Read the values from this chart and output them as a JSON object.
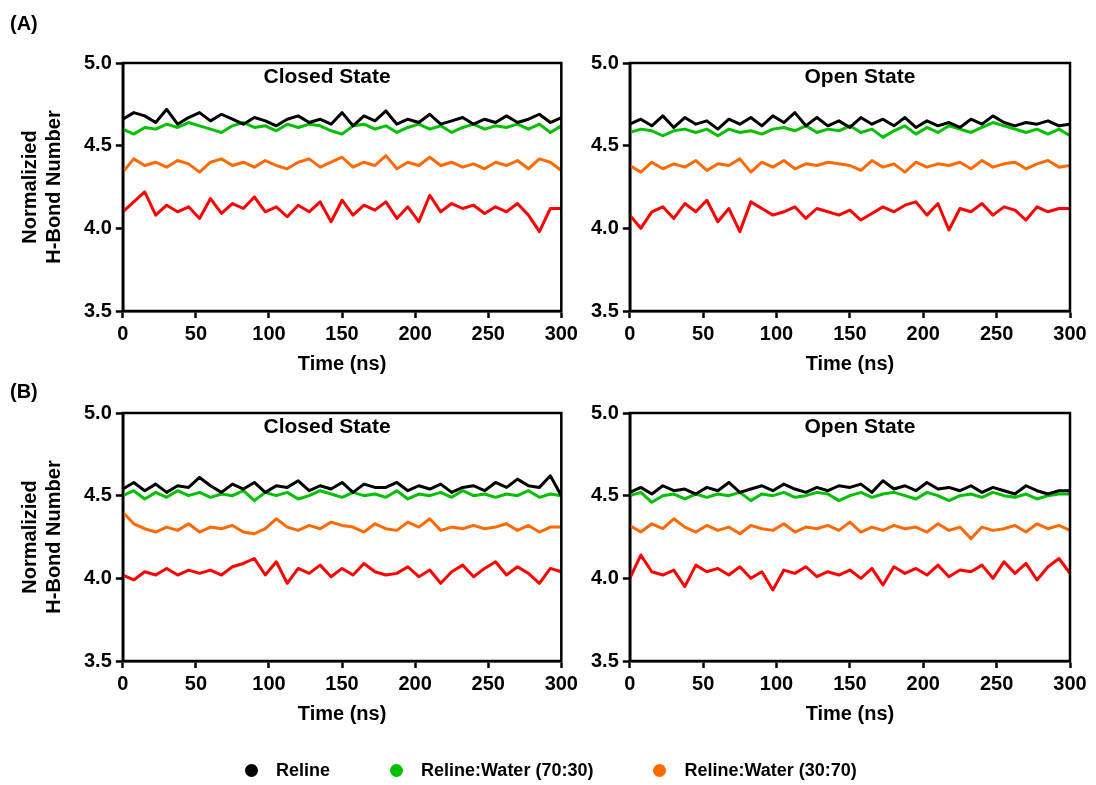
{
  "chart_data": [
    {
      "type": "line",
      "title": "Closed State",
      "annotations": [
        "(A)"
      ],
      "xlabel": "Time (ns)",
      "ylabel": "Normalizied\nH-Bond Number",
      "xlim": [
        0,
        300
      ],
      "xticks": [
        0,
        50,
        100,
        150,
        200,
        250,
        300
      ],
      "ylim": [
        3.5,
        5.0
      ],
      "yticks": [
        {
          "value": 3.5,
          "label": "3.5"
        },
        {
          "value": 4.0,
          "label": "4.0"
        },
        {
          "value": 4.5,
          "label": "4.5"
        },
        {
          "value": 5.0,
          "label": "5.0"
        }
      ],
      "grid": false,
      "marker": "none",
      "line_style": "solid",
      "x": [
        0,
        7.5,
        15,
        22.5,
        30,
        37.5,
        45,
        52.5,
        60,
        67.5,
        75,
        82.5,
        90,
        97.5,
        105,
        112.5,
        120,
        127.5,
        135,
        142.5,
        150,
        157.5,
        165,
        172.5,
        180,
        187.5,
        195,
        202.5,
        210,
        217.5,
        225,
        232.5,
        240,
        247.5,
        255,
        262.5,
        270,
        277.5,
        285,
        292.5,
        300
      ],
      "series": [
        {
          "color": "#000000",
          "values": [
            4.66,
            4.7,
            4.68,
            4.64,
            4.72,
            4.63,
            4.67,
            4.7,
            4.65,
            4.69,
            4.66,
            4.63,
            4.67,
            4.65,
            4.62,
            4.66,
            4.68,
            4.64,
            4.66,
            4.63,
            4.7,
            4.62,
            4.68,
            4.65,
            4.71,
            4.63,
            4.66,
            4.64,
            4.69,
            4.63,
            4.65,
            4.67,
            4.63,
            4.66,
            4.64,
            4.68,
            4.64,
            4.66,
            4.69,
            4.64,
            4.67
          ]
        },
        {
          "color": "#00c000",
          "values": [
            4.6,
            4.57,
            4.61,
            4.6,
            4.63,
            4.61,
            4.64,
            4.62,
            4.6,
            4.58,
            4.62,
            4.64,
            4.61,
            4.62,
            4.59,
            4.63,
            4.61,
            4.63,
            4.62,
            4.59,
            4.57,
            4.62,
            4.63,
            4.6,
            4.62,
            4.58,
            4.61,
            4.63,
            4.6,
            4.62,
            4.58,
            4.61,
            4.63,
            4.6,
            4.62,
            4.61,
            4.63,
            4.6,
            4.63,
            4.58,
            4.62
          ]
        },
        {
          "color": "#ff6a00",
          "values": [
            4.34,
            4.42,
            4.38,
            4.4,
            4.37,
            4.41,
            4.39,
            4.34,
            4.4,
            4.42,
            4.38,
            4.4,
            4.37,
            4.41,
            4.38,
            4.36,
            4.4,
            4.42,
            4.37,
            4.4,
            4.43,
            4.37,
            4.4,
            4.38,
            4.44,
            4.36,
            4.4,
            4.38,
            4.43,
            4.38,
            4.4,
            4.37,
            4.39,
            4.36,
            4.4,
            4.38,
            4.41,
            4.36,
            4.42,
            4.4,
            4.35
          ]
        },
        {
          "color": "#ff0000",
          "values": [
            4.1,
            4.16,
            4.22,
            4.08,
            4.14,
            4.1,
            4.13,
            4.06,
            4.18,
            4.09,
            4.15,
            4.12,
            4.19,
            4.1,
            4.13,
            4.07,
            4.14,
            4.1,
            4.16,
            4.04,
            4.17,
            4.08,
            4.14,
            4.11,
            4.16,
            4.06,
            4.13,
            4.04,
            4.2,
            4.1,
            4.15,
            4.12,
            4.14,
            4.09,
            4.13,
            4.1,
            4.15,
            4.08,
            3.98,
            4.12,
            4.12
          ]
        }
      ]
    },
    {
      "type": "line",
      "title": "Open State",
      "xlabel": "Time (ns)",
      "xlim": [
        0,
        300
      ],
      "xticks": [
        0,
        50,
        100,
        150,
        200,
        250,
        300
      ],
      "ylim": [
        3.5,
        5.0
      ],
      "yticks": [
        {
          "value": 3.5,
          "label": "3.5"
        },
        {
          "value": 4.0,
          "label": "4.0"
        },
        {
          "value": 4.5,
          "label": "4.5"
        },
        {
          "value": 5.0,
          "label": "5.0"
        }
      ],
      "grid": false,
      "marker": "none",
      "line_style": "solid",
      "x": [
        0,
        7.5,
        15,
        22.5,
        30,
        37.5,
        45,
        52.5,
        60,
        67.5,
        75,
        82.5,
        90,
        97.5,
        105,
        112.5,
        120,
        127.5,
        135,
        142.5,
        150,
        157.5,
        165,
        172.5,
        180,
        187.5,
        195,
        202.5,
        210,
        217.5,
        225,
        232.5,
        240,
        247.5,
        255,
        262.5,
        270,
        277.5,
        285,
        292.5,
        300
      ],
      "series": [
        {
          "color": "#000000",
          "values": [
            4.63,
            4.66,
            4.62,
            4.68,
            4.61,
            4.67,
            4.63,
            4.65,
            4.6,
            4.66,
            4.63,
            4.67,
            4.62,
            4.68,
            4.64,
            4.7,
            4.62,
            4.67,
            4.62,
            4.65,
            4.61,
            4.67,
            4.63,
            4.66,
            4.62,
            4.67,
            4.61,
            4.65,
            4.62,
            4.64,
            4.61,
            4.66,
            4.63,
            4.68,
            4.64,
            4.62,
            4.64,
            4.63,
            4.65,
            4.62,
            4.63
          ]
        },
        {
          "color": "#00c000",
          "values": [
            4.58,
            4.6,
            4.59,
            4.56,
            4.59,
            4.6,
            4.58,
            4.6,
            4.56,
            4.6,
            4.58,
            4.59,
            4.57,
            4.6,
            4.61,
            4.59,
            4.62,
            4.58,
            4.6,
            4.59,
            4.62,
            4.58,
            4.6,
            4.55,
            4.59,
            4.62,
            4.57,
            4.61,
            4.58,
            4.62,
            4.6,
            4.58,
            4.61,
            4.64,
            4.62,
            4.6,
            4.58,
            4.6,
            4.57,
            4.6,
            4.56
          ]
        },
        {
          "color": "#ff6a00",
          "values": [
            4.38,
            4.34,
            4.4,
            4.36,
            4.39,
            4.37,
            4.41,
            4.35,
            4.39,
            4.38,
            4.42,
            4.34,
            4.4,
            4.37,
            4.41,
            4.36,
            4.39,
            4.38,
            4.4,
            4.39,
            4.38,
            4.35,
            4.41,
            4.37,
            4.39,
            4.34,
            4.4,
            4.37,
            4.39,
            4.38,
            4.4,
            4.36,
            4.41,
            4.37,
            4.39,
            4.4,
            4.36,
            4.39,
            4.41,
            4.37,
            4.38
          ]
        },
        {
          "color": "#ff0000",
          "values": [
            4.08,
            4.0,
            4.1,
            4.13,
            4.06,
            4.15,
            4.1,
            4.17,
            4.04,
            4.12,
            3.98,
            4.16,
            4.12,
            4.08,
            4.1,
            4.13,
            4.06,
            4.12,
            4.1,
            4.08,
            4.11,
            4.05,
            4.09,
            4.13,
            4.1,
            4.14,
            4.16,
            4.08,
            4.15,
            3.99,
            4.12,
            4.1,
            4.15,
            4.08,
            4.13,
            4.11,
            4.05,
            4.13,
            4.1,
            4.12,
            4.12
          ]
        }
      ]
    },
    {
      "type": "line",
      "title": "Closed State",
      "annotations": [
        "(B)"
      ],
      "xlabel": "Time (ns)",
      "ylabel": "Normalizied\nH-Bond Number",
      "xlim": [
        0,
        300
      ],
      "xticks": [
        0,
        50,
        100,
        150,
        200,
        250,
        300
      ],
      "ylim": [
        3.5,
        5.0
      ],
      "yticks": [
        {
          "value": 3.5,
          "label": "3.5"
        },
        {
          "value": 4.0,
          "label": "4.0"
        },
        {
          "value": 4.5,
          "label": "4.5"
        },
        {
          "value": 5.0,
          "label": "5.0"
        }
      ],
      "grid": false,
      "marker": "none",
      "line_style": "solid",
      "x": [
        0,
        7.5,
        15,
        22.5,
        30,
        37.5,
        45,
        52.5,
        60,
        67.5,
        75,
        82.5,
        90,
        97.5,
        105,
        112.5,
        120,
        127.5,
        135,
        142.5,
        150,
        157.5,
        165,
        172.5,
        180,
        187.5,
        195,
        202.5,
        210,
        217.5,
        225,
        232.5,
        240,
        247.5,
        255,
        262.5,
        270,
        277.5,
        285,
        292.5,
        300
      ],
      "series": [
        {
          "color": "#000000",
          "values": [
            4.54,
            4.58,
            4.53,
            4.57,
            4.52,
            4.56,
            4.55,
            4.61,
            4.56,
            4.52,
            4.57,
            4.54,
            4.58,
            4.52,
            4.56,
            4.55,
            4.59,
            4.53,
            4.56,
            4.54,
            4.58,
            4.52,
            4.57,
            4.55,
            4.55,
            4.58,
            4.53,
            4.56,
            4.54,
            4.57,
            4.52,
            4.55,
            4.56,
            4.53,
            4.58,
            4.55,
            4.6,
            4.56,
            4.55,
            4.62,
            4.5
          ]
        },
        {
          "color": "#00c000",
          "values": [
            4.5,
            4.53,
            4.48,
            4.52,
            4.49,
            4.53,
            4.5,
            4.52,
            4.49,
            4.51,
            4.5,
            4.53,
            4.47,
            4.52,
            4.5,
            4.52,
            4.48,
            4.5,
            4.53,
            4.51,
            4.49,
            4.52,
            4.5,
            4.51,
            4.49,
            4.53,
            4.48,
            4.51,
            4.5,
            4.52,
            4.49,
            4.53,
            4.5,
            4.51,
            4.49,
            4.51,
            4.5,
            4.53,
            4.49,
            4.51,
            4.5
          ]
        },
        {
          "color": "#ff6a00",
          "values": [
            4.4,
            4.33,
            4.3,
            4.28,
            4.31,
            4.29,
            4.33,
            4.28,
            4.31,
            4.3,
            4.32,
            4.28,
            4.27,
            4.3,
            4.36,
            4.31,
            4.29,
            4.32,
            4.3,
            4.34,
            4.32,
            4.31,
            4.28,
            4.33,
            4.3,
            4.29,
            4.34,
            4.31,
            4.36,
            4.29,
            4.31,
            4.3,
            4.32,
            4.3,
            4.31,
            4.33,
            4.29,
            4.32,
            4.28,
            4.31,
            4.31
          ]
        },
        {
          "color": "#ff0000",
          "values": [
            4.02,
            3.99,
            4.04,
            4.02,
            4.06,
            4.02,
            4.05,
            4.03,
            4.05,
            4.02,
            4.07,
            4.09,
            4.12,
            4.02,
            4.1,
            3.97,
            4.06,
            4.03,
            4.08,
            4.01,
            4.06,
            4.02,
            4.09,
            4.04,
            4.02,
            4.03,
            4.07,
            4.01,
            4.05,
            3.97,
            4.04,
            4.08,
            4.01,
            4.06,
            4.1,
            4.02,
            4.07,
            4.03,
            3.97,
            4.06,
            4.04
          ]
        }
      ]
    },
    {
      "type": "line",
      "title": "Open State",
      "xlabel": "Time (ns)",
      "xlim": [
        0,
        300
      ],
      "xticks": [
        0,
        50,
        100,
        150,
        200,
        250,
        300
      ],
      "ylim": [
        3.5,
        5.0
      ],
      "yticks": [
        {
          "value": 3.5,
          "label": "3.5"
        },
        {
          "value": 4.0,
          "label": "4.0"
        },
        {
          "value": 4.5,
          "label": "4.5"
        },
        {
          "value": 5.0,
          "label": "5.0"
        }
      ],
      "grid": false,
      "marker": "none",
      "line_style": "solid",
      "legend": "bottom",
      "x": [
        0,
        7.5,
        15,
        22.5,
        30,
        37.5,
        45,
        52.5,
        60,
        67.5,
        75,
        82.5,
        90,
        97.5,
        105,
        112.5,
        120,
        127.5,
        135,
        142.5,
        150,
        157.5,
        165,
        172.5,
        180,
        187.5,
        195,
        202.5,
        210,
        217.5,
        225,
        232.5,
        240,
        247.5,
        255,
        262.5,
        270,
        277.5,
        285,
        292.5,
        300
      ],
      "series": [
        {
          "name": "Reline",
          "color": "#000000",
          "values": [
            4.52,
            4.55,
            4.51,
            4.56,
            4.53,
            4.54,
            4.51,
            4.55,
            4.53,
            4.58,
            4.52,
            4.54,
            4.56,
            4.53,
            4.57,
            4.54,
            4.52,
            4.55,
            4.53,
            4.56,
            4.55,
            4.57,
            4.52,
            4.59,
            4.54,
            4.56,
            4.53,
            4.58,
            4.54,
            4.55,
            4.53,
            4.56,
            4.52,
            4.55,
            4.53,
            4.51,
            4.56,
            4.53,
            4.51,
            4.53,
            4.53
          ]
        },
        {
          "name": "Reline:Water (70:30)",
          "color": "#00c000",
          "values": [
            4.5,
            4.52,
            4.46,
            4.5,
            4.51,
            4.48,
            4.51,
            4.49,
            4.51,
            4.5,
            4.52,
            4.47,
            4.51,
            4.5,
            4.52,
            4.49,
            4.5,
            4.52,
            4.51,
            4.47,
            4.5,
            4.52,
            4.49,
            4.51,
            4.52,
            4.5,
            4.48,
            4.52,
            4.5,
            4.47,
            4.5,
            4.51,
            4.49,
            4.52,
            4.5,
            4.49,
            4.51,
            4.48,
            4.5,
            4.51,
            4.51
          ]
        },
        {
          "name": "Reline:Water (30:70)",
          "color": "#ff6a00",
          "values": [
            4.32,
            4.28,
            4.33,
            4.3,
            4.36,
            4.31,
            4.28,
            4.32,
            4.29,
            4.31,
            4.27,
            4.32,
            4.3,
            4.29,
            4.33,
            4.28,
            4.31,
            4.3,
            4.32,
            4.29,
            4.34,
            4.28,
            4.31,
            4.29,
            4.32,
            4.3,
            4.31,
            4.28,
            4.33,
            4.29,
            4.31,
            4.24,
            4.31,
            4.29,
            4.3,
            4.32,
            4.28,
            4.33,
            4.3,
            4.32,
            4.29
          ]
        },
        {
          "color": "#ff0000",
          "values": [
            4.0,
            4.14,
            4.04,
            4.02,
            4.05,
            3.95,
            4.08,
            4.04,
            4.06,
            4.02,
            4.07,
            4.0,
            4.04,
            3.93,
            4.05,
            4.03,
            4.07,
            4.01,
            4.04,
            4.02,
            4.05,
            4.0,
            4.06,
            3.96,
            4.07,
            4.03,
            4.06,
            4.02,
            4.08,
            4.01,
            4.05,
            4.04,
            4.08,
            4.0,
            4.1,
            4.03,
            4.09,
            3.99,
            4.07,
            4.12,
            4.03
          ]
        }
      ]
    }
  ]
}
